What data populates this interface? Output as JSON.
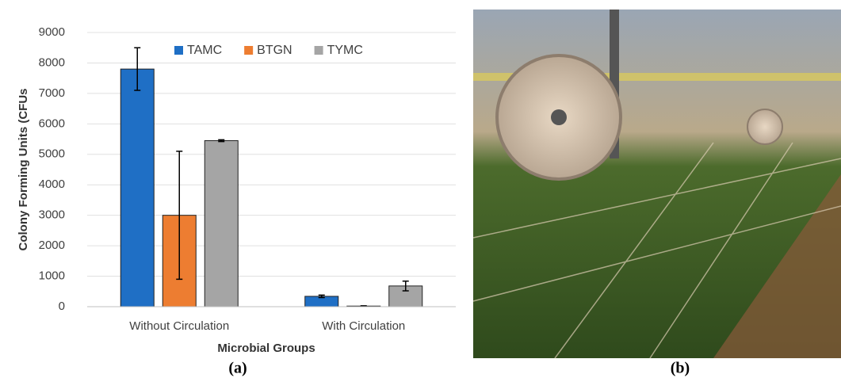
{
  "chart_data": {
    "type": "bar",
    "categories": [
      "Without Circulation",
      "With Circulation"
    ],
    "series": [
      {
        "name": "TAMC",
        "color": "#1f6fc5",
        "values": [
          7800,
          340
        ],
        "errors": [
          700,
          40
        ]
      },
      {
        "name": "BTGN",
        "color": "#ed7d31",
        "values": [
          3000,
          20
        ],
        "errors": [
          2100,
          10
        ]
      },
      {
        "name": "TYMC",
        "color": "#a5a5a5",
        "values": [
          5450,
          680
        ],
        "errors": [
          30,
          160
        ]
      }
    ],
    "ylabel": "Colony Forming Units (CFUs",
    "xlabel": "Microbial Groups",
    "ylim": [
      0,
      9000
    ],
    "yticks": [
      0,
      1000,
      2000,
      3000,
      4000,
      5000,
      6000,
      7000,
      8000,
      9000
    ],
    "grid": true,
    "legend": "top"
  },
  "panel_labels": [
    "(a)",
    "(b)"
  ]
}
